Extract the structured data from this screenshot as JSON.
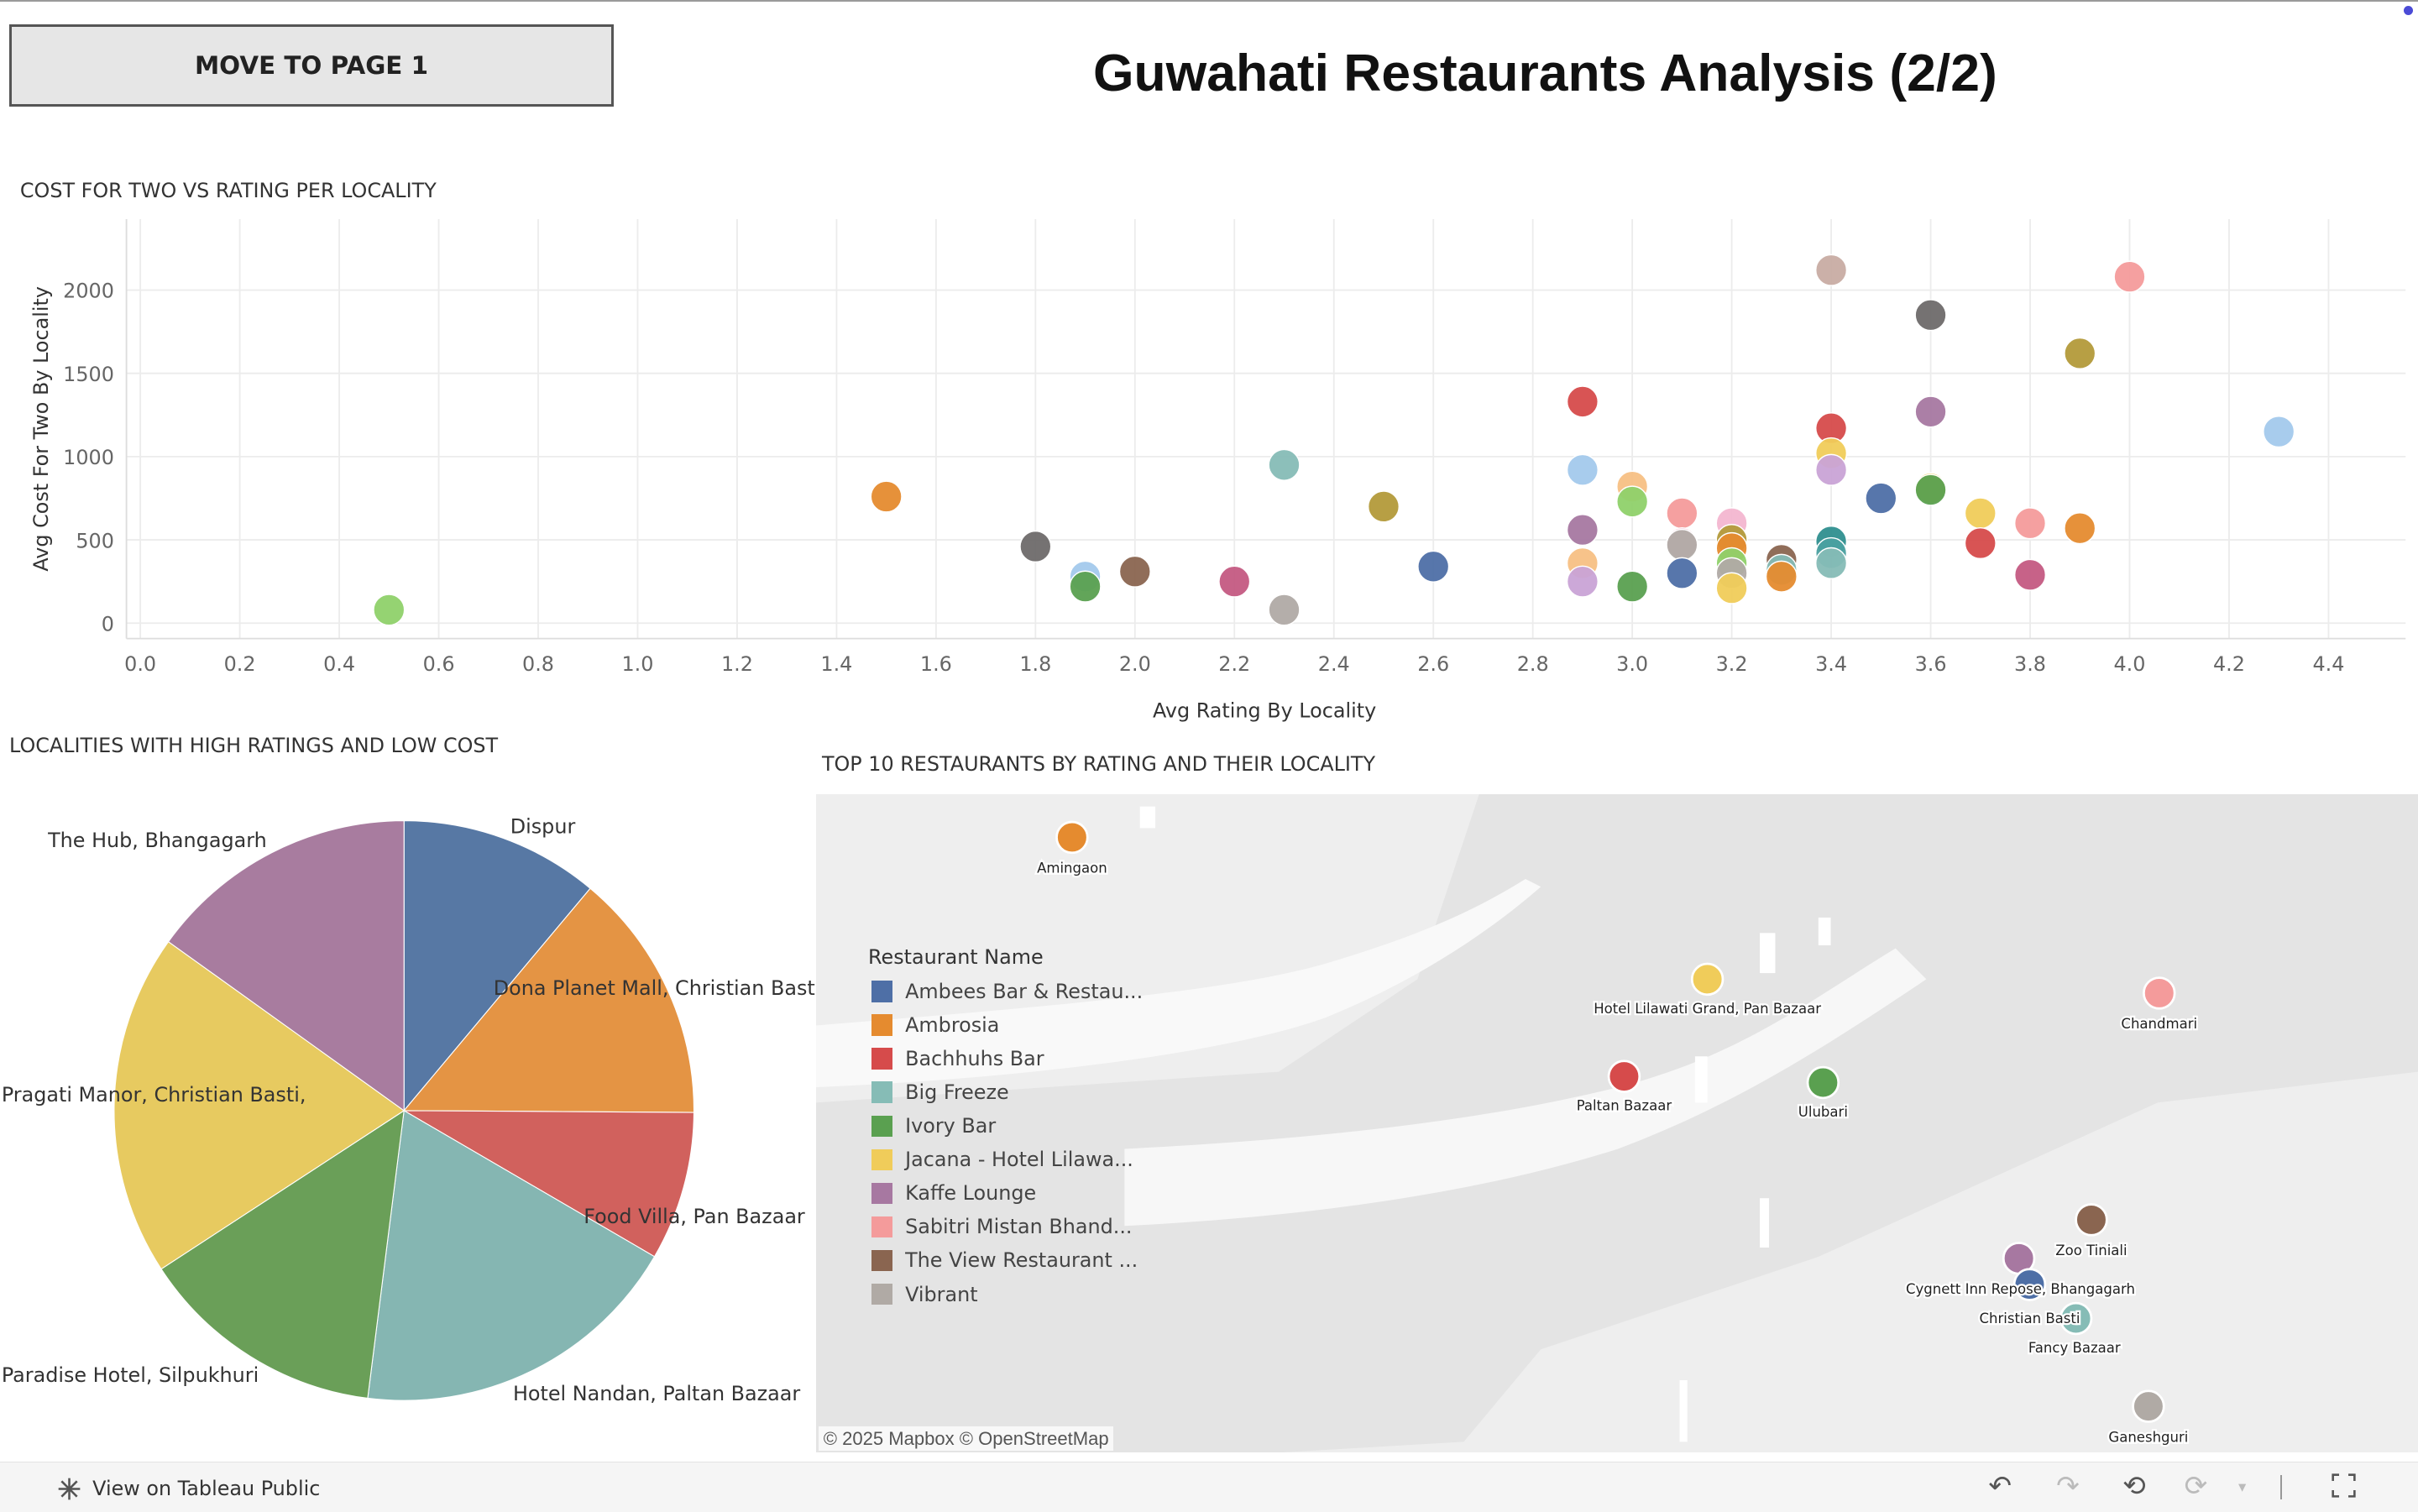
{
  "nav": {
    "move_button": "MOVE TO PAGE 1"
  },
  "title": "Guwahati Restaurants Analysis (2/2)",
  "scatter_title": "COST FOR TWO VS RATING PER LOCALITY",
  "pie_title": "LOCALITIES WITH HIGH RATINGS AND LOW COST",
  "map_title": "TOP 10 RESTAURANTS BY RATING AND THEIR LOCALITY",
  "chart_data": [
    {
      "type": "scatter",
      "title": "COST FOR TWO VS RATING PER LOCALITY",
      "xlabel": "Avg Rating By Locality",
      "ylabel": "Avg Cost For Two By Locality",
      "xlim": [
        0.0,
        4.5
      ],
      "ylim": [
        0,
        2300
      ],
      "xticks": [
        0.0,
        0.2,
        0.4,
        0.6,
        0.8,
        1.0,
        1.2,
        1.4,
        1.6,
        1.8,
        2.0,
        2.2,
        2.4,
        2.6,
        2.8,
        3.0,
        3.2,
        3.4,
        3.6,
        3.8,
        4.0,
        4.2,
        4.4
      ],
      "xtick_labels": [
        "0.0",
        "0.2",
        "0.4",
        "0.6",
        "0.8",
        "1.0",
        "1.2",
        "1.4",
        "1.6",
        "1.8",
        "2.0",
        "2.2",
        "2.4",
        "2.6",
        "2.8",
        "3.0",
        "3.2",
        "3.4",
        "3.6",
        "3.8",
        "4.0",
        "4.2",
        "4.4"
      ],
      "yticks": [
        0,
        500,
        1000,
        1500,
        2000
      ],
      "ytick_labels": [
        "0",
        "500",
        "1000",
        "1500",
        "2000"
      ],
      "grid": true,
      "points": [
        {
          "x": 0.5,
          "y": 80,
          "color": "#8fd16a"
        },
        {
          "x": 1.5,
          "y": 760,
          "color": "#e58b2f"
        },
        {
          "x": 1.8,
          "y": 460,
          "color": "#6e6a6a"
        },
        {
          "x": 1.9,
          "y": 280,
          "color": "#a3c9ec"
        },
        {
          "x": 1.9,
          "y": 220,
          "color": "#5aa050"
        },
        {
          "x": 2.0,
          "y": 310,
          "color": "#8a6550"
        },
        {
          "x": 2.2,
          "y": 250,
          "color": "#c45a82"
        },
        {
          "x": 2.3,
          "y": 950,
          "color": "#86bcb6"
        },
        {
          "x": 2.3,
          "y": 80,
          "color": "#b0aaa5"
        },
        {
          "x": 2.5,
          "y": 700,
          "color": "#b39a3a"
        },
        {
          "x": 2.6,
          "y": 340,
          "color": "#4e6fa6"
        },
        {
          "x": 2.9,
          "y": 1330,
          "color": "#d64b4b"
        },
        {
          "x": 2.9,
          "y": 920,
          "color": "#a3c9ec"
        },
        {
          "x": 2.9,
          "y": 560,
          "color": "#a778a1"
        },
        {
          "x": 2.9,
          "y": 360,
          "color": "#f7c084"
        },
        {
          "x": 2.9,
          "y": 250,
          "color": "#c9a3d6"
        },
        {
          "x": 3.0,
          "y": 820,
          "color": "#f7c084"
        },
        {
          "x": 3.0,
          "y": 730,
          "color": "#8fd16a"
        },
        {
          "x": 3.0,
          "y": 220,
          "color": "#5aa050"
        },
        {
          "x": 3.1,
          "y": 660,
          "color": "#f49b9b"
        },
        {
          "x": 3.1,
          "y": 480,
          "color": "#f3b6d0"
        },
        {
          "x": 3.1,
          "y": 470,
          "color": "#b0aaa5"
        },
        {
          "x": 3.1,
          "y": 300,
          "color": "#4e6fa6"
        },
        {
          "x": 3.2,
          "y": 600,
          "color": "#f3b6d0"
        },
        {
          "x": 3.2,
          "y": 500,
          "color": "#b39a3a"
        },
        {
          "x": 3.2,
          "y": 450,
          "color": "#e58b2f"
        },
        {
          "x": 3.2,
          "y": 360,
          "color": "#8fd16a"
        },
        {
          "x": 3.2,
          "y": 300,
          "color": "#b0aaa5"
        },
        {
          "x": 3.2,
          "y": 210,
          "color": "#f0cc5a"
        },
        {
          "x": 3.3,
          "y": 380,
          "color": "#8a6550"
        },
        {
          "x": 3.3,
          "y": 320,
          "color": "#86bcb6"
        },
        {
          "x": 3.3,
          "y": 280,
          "color": "#e58b2f"
        },
        {
          "x": 3.4,
          "y": 2120,
          "color": "#c8aca3"
        },
        {
          "x": 3.4,
          "y": 1170,
          "color": "#d64b4b"
        },
        {
          "x": 3.4,
          "y": 1020,
          "color": "#f0cc5a"
        },
        {
          "x": 3.4,
          "y": 920,
          "color": "#c9a3d6"
        },
        {
          "x": 3.4,
          "y": 490,
          "color": "#2f8f8f"
        },
        {
          "x": 3.4,
          "y": 420,
          "color": "#4aa0a0"
        },
        {
          "x": 3.4,
          "y": 360,
          "color": "#86bcb6"
        },
        {
          "x": 3.5,
          "y": 750,
          "color": "#4e6fa6"
        },
        {
          "x": 3.6,
          "y": 1850,
          "color": "#6e6a6a"
        },
        {
          "x": 3.6,
          "y": 1270,
          "color": "#a778a1"
        },
        {
          "x": 3.6,
          "y": 810,
          "color": "#f0cc5a"
        },
        {
          "x": 3.6,
          "y": 800,
          "color": "#5aa050"
        },
        {
          "x": 3.7,
          "y": 660,
          "color": "#f0cc5a"
        },
        {
          "x": 3.7,
          "y": 480,
          "color": "#d64b4b"
        },
        {
          "x": 3.8,
          "y": 600,
          "color": "#f49b9b"
        },
        {
          "x": 3.8,
          "y": 290,
          "color": "#c45a82"
        },
        {
          "x": 3.9,
          "y": 1620,
          "color": "#b39a3a"
        },
        {
          "x": 3.9,
          "y": 570,
          "color": "#e58b2f"
        },
        {
          "x": 4.0,
          "y": 2080,
          "color": "#f49b9b"
        },
        {
          "x": 4.3,
          "y": 1150,
          "color": "#a3c9ec"
        }
      ]
    },
    {
      "type": "pie",
      "title": "LOCALITIES WITH HIGH RATINGS AND LOW COST",
      "slices": [
        {
          "label": "Dispur",
          "value": 11.1,
          "color": "#5778a4"
        },
        {
          "label": "Dona Planet Mall, Christian Basti",
          "value": 14.0,
          "color": "#e49444"
        },
        {
          "label": "Food Villa, Pan Bazaar",
          "value": 8.3,
          "color": "#d1615d"
        },
        {
          "label": "Hotel Nandan, Paltan Bazaar",
          "value": 18.6,
          "color": "#85b6b2"
        },
        {
          "label": "Paradise Hotel, Silpukhuri",
          "value": 13.8,
          "color": "#6a9f58"
        },
        {
          "label": "Pragati Manor, Christian Basti,",
          "value": 19.1,
          "color": "#e7ca60"
        },
        {
          "label": "The Hub, Bhangagarh",
          "value": 15.1,
          "color": "#a87c9f"
        }
      ]
    }
  ],
  "map": {
    "legend_title": "Restaurant Name",
    "legend": [
      {
        "label": "Ambees Bar & Restau...",
        "color": "#4e6fa6"
      },
      {
        "label": "Ambrosia",
        "color": "#e58b2f"
      },
      {
        "label": "Bachhuhs Bar",
        "color": "#d64b4b"
      },
      {
        "label": "Big Freeze",
        "color": "#86bcb6"
      },
      {
        "label": "Ivory Bar",
        "color": "#5aa050"
      },
      {
        "label": "Jacana - Hotel Lilawa...",
        "color": "#f0cc5a"
      },
      {
        "label": "Kaffe Lounge",
        "color": "#a778a1"
      },
      {
        "label": "Sabitri Mistan Bhand...",
        "color": "#f49b9b"
      },
      {
        "label": "The View Restaurant ...",
        "color": "#8a6550"
      },
      {
        "label": "Vibrant",
        "color": "#b0aaa5"
      }
    ],
    "places": [
      {
        "label": "Amingaon",
        "color": "#e58b2f"
      },
      {
        "label": "Hotel Lilawati Grand, Pan Bazaar",
        "color": "#f0cc5a"
      },
      {
        "label": "Chandmari",
        "color": "#f49b9b"
      },
      {
        "label": "Paltan Bazaar",
        "color": "#d64b4b"
      },
      {
        "label": "Ulubari",
        "color": "#5aa050"
      },
      {
        "label": "Zoo Tiniali",
        "color": "#8a6550"
      },
      {
        "label": "Cygnett Inn Repose, Bhangagarh",
        "color": "#a778a1"
      },
      {
        "label": "Christian Basti",
        "color": "#4e6fa6"
      },
      {
        "label": "Fancy Bazaar",
        "color": "#86bcb6"
      },
      {
        "label": "Ganeshguri",
        "color": "#b0aaa5"
      }
    ],
    "attribution": "© 2025 Mapbox  © OpenStreetMap"
  },
  "footer": {
    "tableau_link": "View on Tableau Public",
    "icons": [
      "undo-icon",
      "redo-icon",
      "revert-icon",
      "refresh-icon",
      "fullscreen-icon"
    ]
  }
}
